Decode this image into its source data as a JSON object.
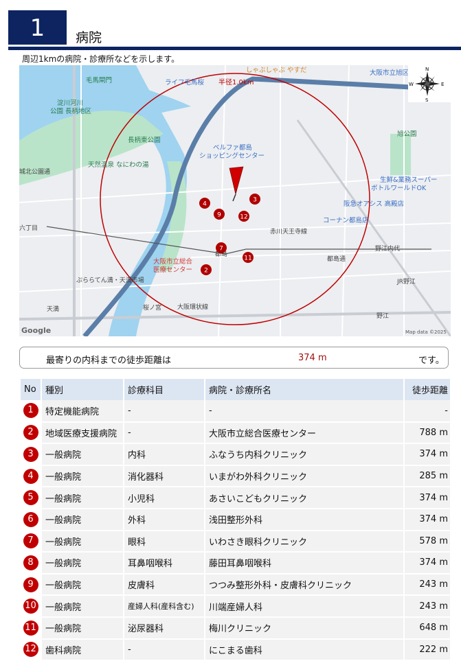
{
  "header": {
    "number": "1",
    "title": "病院",
    "description": "周辺1kmの病院・診療所などを示します。"
  },
  "map": {
    "labels": [
      "毛馬閘門",
      "淀川河川",
      "公園 長柄地区",
      "天然温泉 なにわの湯",
      "城北公園通",
      "ライフ毛馬桜",
      "半径1.0km",
      "しゃぶしゃぶ やすだ",
      "大阪市立旭区民セ",
      "ベルファ都島",
      "ショッピングセンター",
      "旭公園",
      "生鮮&業務スーパー",
      "ボトルワールドOK",
      "阪急オアシス 高殿店",
      "コーナン都島店",
      "長柄東公園",
      "大阪市立総合",
      "医療センター",
      "ぷららてん満・天満市場",
      "天満",
      "桜ノ宮",
      "大阪環状線",
      "都島",
      "赤川天王寺線",
      "都島通",
      "野江内代",
      "JR野江",
      "野江",
      "六丁目",
      "Google",
      "Map data ©2025"
    ],
    "markers": [
      "4",
      "9",
      "3",
      "12",
      "7",
      "11",
      "2"
    ],
    "compass": [
      "N",
      "S",
      "E",
      "W"
    ],
    "colors": {
      "radius_circle": "#c00000",
      "marker": "#b00000",
      "water": "#9fd3f0",
      "park": "#b9e4c9",
      "highway": "#5a7ea8"
    }
  },
  "summary": {
    "prefix": "最寄りの内科までの徒歩距離は",
    "value": "374 m",
    "suffix": "です。"
  },
  "table": {
    "headers": [
      "No",
      "種別",
      "診療科目",
      "病院・診療所名",
      "徒歩距離"
    ],
    "rows": [
      {
        "no": "1",
        "type": "特定機能病院",
        "dept": "-",
        "name": "-",
        "dist": "-"
      },
      {
        "no": "2",
        "type": "地域医療支援病院",
        "dept": "-",
        "name": "大阪市立総合医療センター",
        "dist": "788 m"
      },
      {
        "no": "3",
        "type": "一般病院",
        "dept": "内科",
        "name": "ふなうち内科クリニック",
        "dist": "374 m"
      },
      {
        "no": "4",
        "type": "一般病院",
        "dept": "消化器科",
        "name": "いまがわ外科クリニック",
        "dist": "285 m"
      },
      {
        "no": "5",
        "type": "一般病院",
        "dept": "小児科",
        "name": "あさいこどもクリニック",
        "dist": "374 m"
      },
      {
        "no": "6",
        "type": "一般病院",
        "dept": "外科",
        "name": "浅田整形外科",
        "dist": "374 m"
      },
      {
        "no": "7",
        "type": "一般病院",
        "dept": "眼科",
        "name": "いわさき眼科クリニック",
        "dist": "578 m"
      },
      {
        "no": "8",
        "type": "一般病院",
        "dept": "耳鼻咽喉科",
        "name": "藤田耳鼻咽喉科",
        "dist": "374 m"
      },
      {
        "no": "9",
        "type": "一般病院",
        "dept": "皮膚科",
        "name": "つつみ整形外科・皮膚科クリニック",
        "dist": "243 m"
      },
      {
        "no": "10",
        "type": "一般病院",
        "dept": "産婦人科(産科含む)",
        "name": "川端産婦人科",
        "dist": "243 m"
      },
      {
        "no": "11",
        "type": "一般病院",
        "dept": "泌尿器科",
        "name": "梅川クリニック",
        "dist": "648 m"
      },
      {
        "no": "12",
        "type": "歯科病院",
        "dept": "-",
        "name": "にこまる歯科",
        "dist": "222 m"
      }
    ]
  }
}
